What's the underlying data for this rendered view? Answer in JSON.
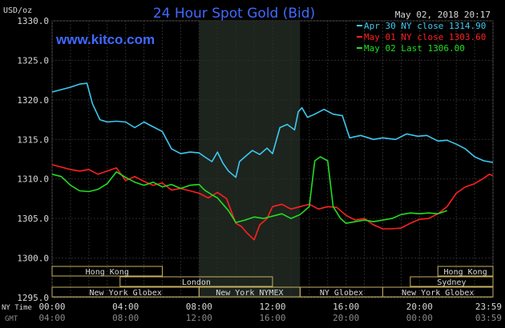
{
  "header": {
    "unit": "USD/oz",
    "title": "24 Hour Spot Gold (Bid)",
    "timestamp": "May 02, 2018 20:17",
    "website": "www.kitco.com"
  },
  "colors": {
    "background": "#000000",
    "grid": "#2b2b2b",
    "highlight_band": "#1d241d",
    "axis_text": "#d9d9d9",
    "title": "#4169ff",
    "session_box": "#c8b060"
  },
  "time_axis": {
    "ny_label": "NY Time",
    "gmt_label": "GMT",
    "ny_ticks": [
      "00:00",
      "04:00",
      "08:00",
      "12:00",
      "16:00",
      "20:00",
      "23:59"
    ],
    "gmt_ticks": [
      "04:00",
      "08:00",
      "12:00",
      "16:00",
      "20:00",
      "00:00",
      "03:59"
    ]
  },
  "sessions": [
    {
      "label": "Hong Kong",
      "start": 0.0,
      "end": 6.0,
      "row": 1
    },
    {
      "label": "London",
      "start": 3.7,
      "end": 12.0,
      "row": 2
    },
    {
      "label": "New York Globex",
      "start": 0.0,
      "end": 8.0,
      "row": 3
    },
    {
      "label": "New York NYMEX",
      "start": 8.0,
      "end": 13.5,
      "row": 3
    },
    {
      "label": "NY Globex",
      "start": 13.5,
      "end": 18.0,
      "row": 3
    },
    {
      "label": "Hong Kong",
      "start": 21.0,
      "end": 24.0,
      "row": 1
    },
    {
      "label": "Sydney",
      "start": 19.5,
      "end": 24.0,
      "row": 2
    },
    {
      "label": "New York Globex",
      "start": 18.0,
      "end": 24.0,
      "row": 3
    }
  ],
  "chart_data": {
    "type": "line",
    "title": "24 Hour Spot Gold (Bid)",
    "ylabel": "USD/oz",
    "xlabel": "NY Time",
    "xlim": [
      0,
      24
    ],
    "ylim": [
      1295,
      1330
    ],
    "yticks": [
      "1330.0",
      "1325.0",
      "1320.0",
      "1315.0",
      "1310.0",
      "1305.0",
      "1300.0",
      "1295.0"
    ],
    "highlight_range": [
      8.0,
      13.5
    ],
    "grid": true,
    "legend_position": "top-right",
    "series": [
      {
        "name": "Apr 30 NY close 1314.90",
        "color": "#3ec8f0",
        "x": [
          0,
          0.5,
          1,
          1.5,
          1.9,
          2.2,
          2.6,
          3,
          3.5,
          4,
          4.5,
          5,
          5.5,
          6,
          6.5,
          7,
          7.5,
          8,
          8.3,
          8.7,
          9,
          9.3,
          9.6,
          10,
          10.2,
          10.5,
          10.9,
          11.3,
          11.7,
          12,
          12.4,
          12.8,
          13.2,
          13.4,
          13.6,
          13.9,
          14.3,
          14.8,
          15.3,
          15.8,
          16.2,
          16.8,
          17.5,
          18,
          18.7,
          19.3,
          19.9,
          20.4,
          21,
          21.5,
          22,
          22.5,
          23,
          23.5,
          24
        ],
        "values": [
          1321.0,
          1321.3,
          1321.6,
          1322.0,
          1322.1,
          1319.5,
          1317.5,
          1317.2,
          1317.3,
          1317.2,
          1316.5,
          1317.2,
          1316.6,
          1316.0,
          1313.8,
          1313.2,
          1313.4,
          1313.3,
          1312.8,
          1312.2,
          1313.4,
          1312.0,
          1311.0,
          1310.2,
          1312.2,
          1312.8,
          1313.6,
          1313.1,
          1313.9,
          1313.2,
          1316.5,
          1316.9,
          1316.2,
          1318.5,
          1319.0,
          1317.8,
          1318.2,
          1318.8,
          1318.2,
          1318.0,
          1315.2,
          1315.5,
          1315.0,
          1315.2,
          1315.0,
          1315.7,
          1315.4,
          1315.5,
          1314.8,
          1314.9,
          1314.4,
          1313.8,
          1312.8,
          1312.3,
          1312.1
        ]
      },
      {
        "name": "May 01 NY close 1303.60",
        "color": "#ff2020",
        "x": [
          0,
          0.5,
          1,
          1.5,
          2,
          2.5,
          3,
          3.5,
          4,
          4.5,
          5,
          5.5,
          6,
          6.5,
          7,
          7.5,
          8,
          8.5,
          9,
          9.5,
          10,
          10.3,
          10.6,
          11,
          11.3,
          11.7,
          12,
          12.5,
          13,
          13.5,
          14,
          14.5,
          15,
          15.5,
          16,
          16.5,
          17,
          17.5,
          18,
          18.5,
          19,
          19.5,
          20,
          20.5,
          21,
          21.5,
          22,
          22.5,
          23,
          23.5,
          23.8,
          24
        ],
        "values": [
          1311.8,
          1311.5,
          1311.2,
          1311.0,
          1311.2,
          1310.6,
          1311.0,
          1311.4,
          1309.8,
          1310.3,
          1309.7,
          1309.2,
          1309.5,
          1308.6,
          1308.8,
          1308.5,
          1308.2,
          1307.6,
          1308.3,
          1307.5,
          1304.4,
          1304.0,
          1303.2,
          1302.3,
          1304.2,
          1305.0,
          1306.5,
          1306.8,
          1306.2,
          1306.5,
          1306.8,
          1306.2,
          1306.5,
          1306.4,
          1305.4,
          1304.8,
          1305.0,
          1304.2,
          1303.7,
          1303.7,
          1303.8,
          1304.4,
          1304.9,
          1305.0,
          1305.6,
          1306.5,
          1308.2,
          1309.0,
          1309.4,
          1310.1,
          1310.6,
          1310.4
        ]
      },
      {
        "name": "May 02 Last 1306.00",
        "color": "#22dd22",
        "x": [
          0,
          0.5,
          1,
          1.5,
          2,
          2.5,
          3,
          3.5,
          4,
          4.5,
          5,
          5.5,
          6,
          6.5,
          7,
          7.5,
          8,
          8.3,
          8.7,
          9,
          9.3,
          9.6,
          10,
          10.5,
          11,
          11.5,
          12,
          12.5,
          13,
          13.5,
          14,
          14.3,
          14.6,
          15,
          15.3,
          15.7,
          16,
          16.5,
          17,
          17.5,
          18,
          18.5,
          19,
          19.5,
          20,
          20.5,
          21,
          21.5
        ],
        "values": [
          1310.6,
          1310.3,
          1309.2,
          1308.5,
          1308.4,
          1308.7,
          1309.4,
          1310.9,
          1310.2,
          1309.6,
          1309.2,
          1309.6,
          1309.0,
          1309.3,
          1308.8,
          1309.2,
          1309.3,
          1308.6,
          1308.0,
          1307.6,
          1306.8,
          1306.0,
          1304.5,
          1304.8,
          1305.2,
          1305.0,
          1305.3,
          1305.6,
          1305.0,
          1305.5,
          1306.5,
          1312.3,
          1312.8,
          1312.3,
          1306.5,
          1305.0,
          1304.4,
          1304.6,
          1304.8,
          1304.6,
          1304.8,
          1305.0,
          1305.5,
          1305.7,
          1305.6,
          1305.7,
          1305.6,
          1306.0
        ]
      }
    ]
  }
}
